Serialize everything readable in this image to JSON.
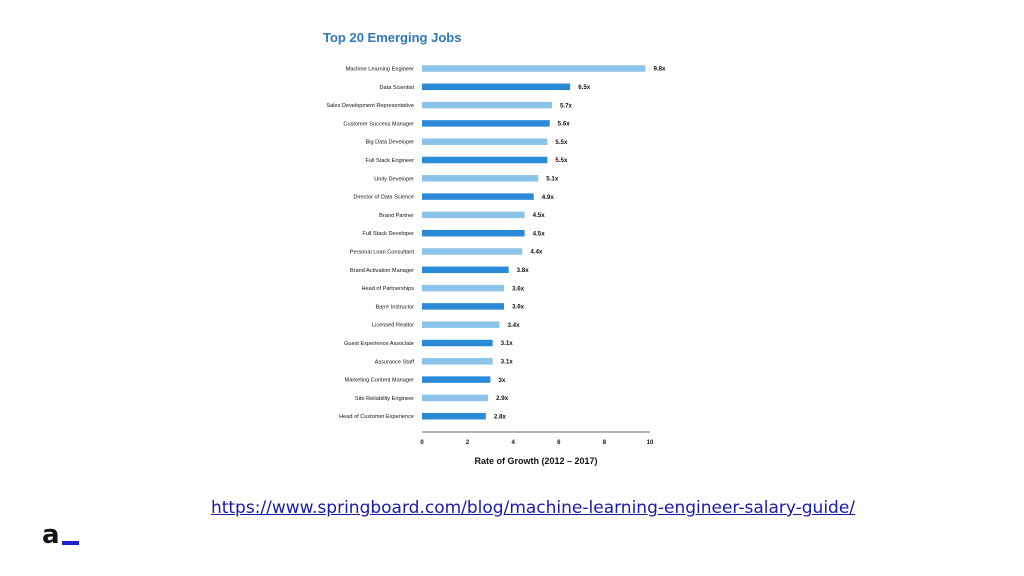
{
  "chart_data": {
    "type": "bar",
    "orientation": "horizontal",
    "title": "Top 20 Emerging Jobs",
    "xlabel": "Rate of Growth (2012 – 2017)",
    "ylabel": "",
    "xlim": [
      0,
      10
    ],
    "xticks": [
      "0",
      "2",
      "4",
      "6",
      "8",
      "10"
    ],
    "grid": false,
    "legend": "none",
    "colors": {
      "light": "#8cc3ea",
      "dark": "#2b8ad8"
    },
    "categories": [
      "Machine Learning Engineer",
      "Data Scientist",
      "Sales Development Representative",
      "Customer Success Manager",
      "Big Data Developer",
      "Full Stack Engineer",
      "Unity Developer",
      "Director of Data Science",
      "Brand Partner",
      "Full Stack Developer",
      "Personal Loan Consultant",
      "Brand Activation Manager",
      "Head of Partnerships",
      "Barre Instructor",
      "Licensed Realtor",
      "Guest Experience Associate",
      "Assurance Staff",
      "Marketing Content Manager",
      "Site Reliability Engineer",
      "Head of Customer Experience"
    ],
    "values": [
      9.8,
      6.5,
      5.7,
      5.6,
      5.5,
      5.5,
      5.1,
      4.9,
      4.5,
      4.5,
      4.4,
      3.8,
      3.6,
      3.6,
      3.4,
      3.1,
      3.1,
      3,
      2.9,
      2.8
    ],
    "value_labels": [
      "9.8x",
      "6.5x",
      "5.7x",
      "5.6x",
      "5.5x",
      "5.5x",
      "5.1x",
      "4.9x",
      "4.5x",
      "4.5x",
      "4.4x",
      "3.8x",
      "3.6x",
      "3.6x",
      "3.4x",
      "3.1x",
      "3.1x",
      "3x",
      "2.9x",
      "2.8x"
    ],
    "bar_shades": [
      "light",
      "dark",
      "light",
      "dark",
      "light",
      "dark",
      "light",
      "dark",
      "light",
      "dark",
      "light",
      "dark",
      "light",
      "dark",
      "light",
      "dark",
      "light",
      "dark",
      "light",
      "dark"
    ]
  },
  "footer": {
    "source_url": "https://www.springboard.com/blog/machine-learning-engineer-salary-guide/",
    "logo_text": "a"
  }
}
